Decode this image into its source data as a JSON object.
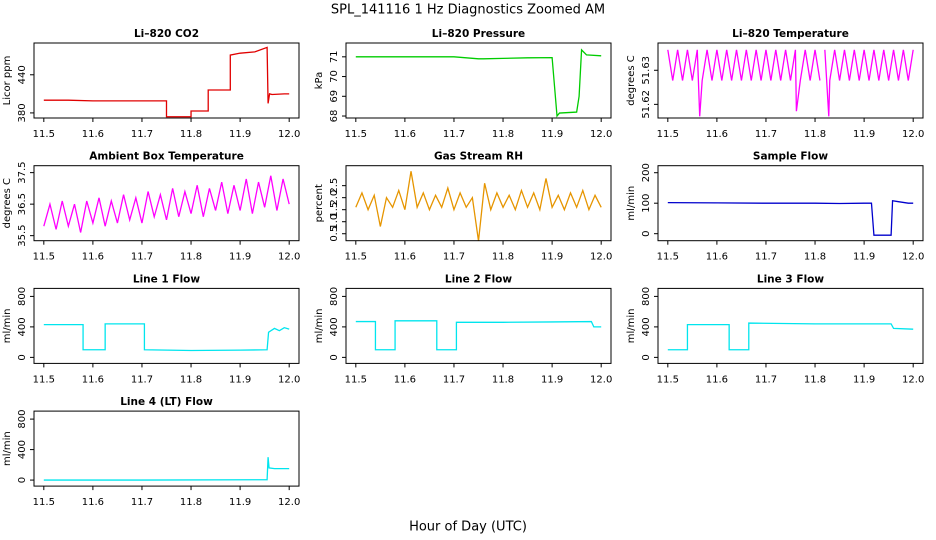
{
  "title": "SPL_141116  1 Hz Diagnostics Zoomed AM",
  "xlabel": "Hour of Day (UTC)",
  "chart_data": [
    {
      "type": "line",
      "title": "Li–820 CO2",
      "ylabel": "Licor ppm",
      "color": "#e00000",
      "x": [
        11.5,
        11.55,
        11.6,
        11.65,
        11.7,
        11.75,
        11.75,
        11.8,
        11.8,
        11.835,
        11.835,
        11.88,
        11.88,
        11.9,
        11.93,
        11.955,
        11.957,
        11.96,
        11.965,
        11.99,
        12.0
      ],
      "values": [
        400,
        400,
        399,
        399,
        399,
        399,
        374,
        374,
        383,
        383,
        416,
        416,
        471,
        474,
        476,
        483,
        395,
        410,
        409,
        410,
        410
      ],
      "xlim": [
        11.48,
        12.02
      ],
      "ylim": [
        372,
        490
      ],
      "xticks": [
        11.5,
        11.6,
        11.7,
        11.8,
        11.9,
        {
          "value": 12,
          "label": "12.0"
        }
      ],
      "yticks": [
        380,
        440
      ]
    },
    {
      "type": "line",
      "title": "Li–820 Pressure",
      "ylabel": "kPa",
      "color": "#00cc00",
      "x": [
        11.5,
        11.6,
        11.7,
        11.75,
        11.76,
        11.8,
        11.85,
        11.9,
        11.91,
        11.915,
        11.95,
        11.955,
        11.96,
        11.97,
        12.0
      ],
      "values": [
        71.0,
        71.0,
        71.0,
        70.9,
        70.9,
        70.92,
        70.95,
        70.96,
        68.0,
        68.15,
        68.2,
        69.0,
        71.35,
        71.1,
        71.05
      ],
      "xlim": [
        11.48,
        12.02
      ],
      "ylim": [
        67.9,
        71.7
      ],
      "xticks": [
        11.5,
        11.6,
        11.7,
        11.8,
        11.9,
        {
          "value": 12,
          "label": "12.0"
        }
      ],
      "yticks": [
        68,
        69,
        70,
        71
      ]
    },
    {
      "type": "line",
      "title": "Li–820 Temperature",
      "ylabel": "degrees C",
      "color": "#ff00ff",
      "x": [
        11.5,
        11.51,
        11.52,
        11.53,
        11.54,
        11.55,
        11.56,
        11.565,
        11.57,
        11.58,
        11.59,
        11.6,
        11.61,
        11.62,
        11.63,
        11.64,
        11.65,
        11.66,
        11.67,
        11.68,
        11.69,
        11.7,
        11.71,
        11.72,
        11.73,
        11.74,
        11.75,
        11.76,
        11.762,
        11.77,
        11.78,
        11.79,
        11.8,
        11.81,
        11.815,
        11.82,
        11.828,
        11.83,
        11.84,
        11.85,
        11.86,
        11.87,
        11.88,
        11.89,
        11.9,
        11.91,
        11.92,
        11.93,
        11.94,
        11.95,
        11.96,
        11.97,
        11.98,
        11.99,
        12.0
      ],
      "values": [
        51.636,
        51.627,
        51.636,
        51.627,
        51.636,
        51.627,
        51.636,
        51.6165,
        51.627,
        51.636,
        51.627,
        51.636,
        51.627,
        51.636,
        51.627,
        51.636,
        51.627,
        51.636,
        51.627,
        51.636,
        51.627,
        51.636,
        51.627,
        51.636,
        51.627,
        51.636,
        51.627,
        51.636,
        51.618,
        51.627,
        51.636,
        51.627,
        51.636,
        51.627,
        null,
        51.636,
        51.6165,
        51.627,
        51.636,
        51.627,
        51.636,
        51.627,
        51.636,
        51.627,
        51.636,
        51.627,
        51.636,
        51.627,
        51.636,
        51.627,
        51.636,
        51.627,
        51.636,
        51.627,
        51.636
      ],
      "xlim": [
        11.48,
        12.02
      ],
      "ylim": [
        51.616,
        51.638
      ],
      "xticks": [
        11.5,
        11.6,
        11.7,
        11.8,
        11.9,
        {
          "value": 12,
          "label": "12.0"
        }
      ],
      "yticks": [
        51.62,
        51.63
      ]
    },
    {
      "type": "line",
      "title": "Ambient Box Temperature",
      "ylabel": "degrees C",
      "color": "#ff00ff",
      "x": [
        11.5,
        11.5125,
        11.525,
        11.5375,
        11.55,
        11.5625,
        11.575,
        11.5875,
        11.6,
        11.6125,
        11.625,
        11.6375,
        11.65,
        11.6625,
        11.675,
        11.6875,
        11.7,
        11.7125,
        11.725,
        11.7375,
        11.75,
        11.7625,
        11.775,
        11.7875,
        11.8,
        11.8125,
        11.825,
        11.8375,
        11.85,
        11.8625,
        11.875,
        11.8875,
        11.9,
        11.9125,
        11.925,
        11.9375,
        11.95,
        11.9625,
        11.975,
        11.9875,
        12.0
      ],
      "values": [
        35.8,
        36.5,
        35.7,
        36.6,
        35.8,
        36.5,
        35.6,
        36.6,
        35.9,
        36.7,
        35.8,
        36.6,
        35.9,
        36.8,
        36.0,
        36.7,
        35.9,
        36.9,
        36.1,
        36.8,
        36.0,
        37.0,
        36.1,
        36.9,
        36.2,
        37.1,
        36.1,
        37.0,
        36.3,
        37.2,
        36.2,
        37.1,
        36.3,
        37.3,
        36.2,
        37.2,
        36.4,
        37.4,
        36.3,
        37.3,
        36.5
      ],
      "xlim": [
        11.48,
        12.02
      ],
      "ylim": [
        35.34,
        37.72
      ],
      "xticks": [
        11.5,
        11.6,
        11.7,
        11.8,
        11.9,
        {
          "value": 12,
          "label": "12.0"
        }
      ],
      "yticks": [
        35.5,
        36.5,
        37.5
      ]
    },
    {
      "type": "line",
      "title": "Gas Stream RH",
      "ylabel": "percent",
      "color": "#e69500",
      "x": [
        11.5,
        11.5125,
        11.525,
        11.5375,
        11.55,
        11.5625,
        11.575,
        11.5875,
        11.6,
        11.6125,
        11.625,
        11.6375,
        11.65,
        11.6625,
        11.675,
        11.6875,
        11.7,
        11.7125,
        11.725,
        11.7375,
        11.75,
        11.7625,
        11.775,
        11.7875,
        11.8,
        11.8125,
        11.825,
        11.8375,
        11.85,
        11.8625,
        11.875,
        11.8875,
        11.9,
        11.9125,
        11.925,
        11.9375,
        11.95,
        11.9625,
        11.975,
        11.9875,
        12.0
      ],
      "values": [
        1.6,
        2.2,
        1.5,
        2.1,
        0.8,
        2.0,
        1.6,
        2.3,
        1.5,
        3.1,
        1.6,
        2.2,
        1.5,
        2.1,
        1.6,
        2.4,
        1.5,
        2.2,
        1.6,
        2.0,
        0.2,
        2.6,
        1.5,
        2.2,
        1.6,
        2.1,
        1.5,
        2.3,
        1.6,
        2.2,
        1.5,
        2.8,
        1.6,
        2.1,
        1.5,
        2.2,
        1.6,
        2.3,
        1.5,
        2.1,
        1.6
      ],
      "xlim": [
        11.48,
        12.02
      ],
      "ylim": [
        0.21,
        3.33
      ],
      "xticks": [
        11.5,
        11.6,
        11.7,
        11.8,
        11.9,
        {
          "value": 12,
          "label": "12.0"
        }
      ],
      "yticks": [
        0.5,
        {
          "value": 1,
          "label": "1.0"
        },
        1.5,
        {
          "value": 2,
          "label": "2.0"
        },
        2.5
      ]
    },
    {
      "type": "line",
      "title": "Sample Flow",
      "ylabel": "ml/min",
      "color": "#0000cc",
      "x": [
        11.5,
        11.6,
        11.7,
        11.8,
        11.85,
        11.9,
        11.915,
        11.92,
        11.95,
        11.955,
        11.958,
        11.97,
        11.99,
        12.0
      ],
      "values": [
        102,
        101,
        100,
        100,
        99,
        100,
        100,
        -5,
        -5,
        -5,
        108,
        105,
        100,
        100
      ],
      "xlim": [
        11.48,
        12.02
      ],
      "ylim": [
        -23,
        223
      ],
      "xticks": [
        11.5,
        11.6,
        11.7,
        11.8,
        11.9,
        {
          "value": 12,
          "label": "12.0"
        }
      ],
      "yticks": [
        0,
        100,
        200
      ]
    },
    {
      "type": "line",
      "title": "Line 1 Flow",
      "ylabel": "ml/min",
      "color": "#00e5ee",
      "x": [
        11.5,
        11.58,
        11.58,
        11.625,
        11.625,
        11.705,
        11.705,
        11.8,
        11.9,
        11.955,
        11.958,
        11.97,
        11.98,
        11.99,
        12.0
      ],
      "values": [
        430,
        430,
        100,
        100,
        440,
        440,
        100,
        90,
        95,
        100,
        330,
        380,
        350,
        390,
        370
      ],
      "xlim": [
        11.48,
        12.02
      ],
      "ylim": [
        -79,
        905
      ],
      "xticks": [
        11.5,
        11.6,
        11.7,
        11.8,
        11.9,
        {
          "value": 12,
          "label": "12.0"
        }
      ],
      "yticks": [
        0,
        400,
        800
      ]
    },
    {
      "type": "line",
      "title": "Line 2 Flow",
      "ylabel": "ml/min",
      "color": "#00e5ee",
      "x": [
        11.5,
        11.54,
        11.54,
        11.58,
        11.58,
        11.665,
        11.665,
        11.705,
        11.705,
        11.8,
        11.9,
        11.98,
        11.985,
        12.0
      ],
      "values": [
        470,
        470,
        100,
        100,
        480,
        480,
        100,
        100,
        460,
        460,
        465,
        470,
        400,
        400
      ],
      "xlim": [
        11.48,
        12.02
      ],
      "ylim": [
        -79,
        905
      ],
      "xticks": [
        11.5,
        11.6,
        11.7,
        11.8,
        11.9,
        {
          "value": 12,
          "label": "12.0"
        }
      ],
      "yticks": [
        0,
        400,
        800
      ]
    },
    {
      "type": "line",
      "title": "Line 3 Flow",
      "ylabel": "ml/min",
      "color": "#00e5ee",
      "x": [
        11.5,
        11.54,
        11.54,
        11.625,
        11.625,
        11.665,
        11.665,
        11.8,
        11.9,
        11.955,
        11.96,
        12.0
      ],
      "values": [
        100,
        100,
        430,
        430,
        100,
        100,
        450,
        440,
        440,
        440,
        380,
        370
      ],
      "xlim": [
        11.48,
        12.02
      ],
      "ylim": [
        -79,
        905
      ],
      "xticks": [
        11.5,
        11.6,
        11.7,
        11.8,
        11.9,
        {
          "value": 12,
          "label": "12.0"
        }
      ],
      "yticks": [
        0,
        400,
        800
      ]
    },
    {
      "type": "line",
      "title": "Line 4 (LT) Flow",
      "ylabel": "ml/min",
      "color": "#00e5ee",
      "x": [
        11.5,
        11.7,
        11.955,
        11.957,
        11.959,
        11.97,
        12.0
      ],
      "values": [
        0,
        0,
        5,
        300,
        160,
        150,
        150
      ],
      "xlim": [
        11.48,
        12.02
      ],
      "ylim": [
        -79,
        905
      ],
      "xticks": [
        11.5,
        11.6,
        11.7,
        11.8,
        11.9,
        {
          "value": 12,
          "label": "12.0"
        }
      ],
      "yticks": [
        0,
        400,
        800
      ]
    }
  ]
}
